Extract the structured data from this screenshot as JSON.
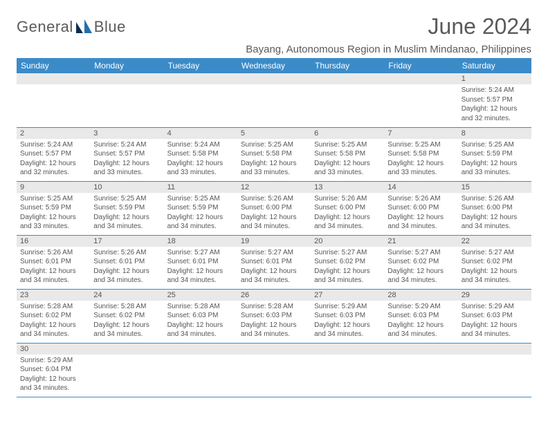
{
  "brand": {
    "name_part1": "General",
    "name_part2": "Blue"
  },
  "title": "June 2024",
  "location": "Bayang, Autonomous Region in Muslim Mindanao, Philippines",
  "colors": {
    "header_bg": "#3b8bc9",
    "header_text": "#ffffff",
    "daynum_bg": "#e9e9e9",
    "text": "#555555",
    "divider": "#3b8bc9",
    "logo_accent": "#1f6fb0"
  },
  "day_headers": [
    "Sunday",
    "Monday",
    "Tuesday",
    "Wednesday",
    "Thursday",
    "Friday",
    "Saturday"
  ],
  "label_prefixes": {
    "sunrise": "Sunrise: ",
    "sunset": "Sunset: ",
    "daylight": "Daylight: "
  },
  "weeks": [
    [
      {
        "n": "",
        "sunrise": "",
        "sunset": "",
        "daylight": ""
      },
      {
        "n": "",
        "sunrise": "",
        "sunset": "",
        "daylight": ""
      },
      {
        "n": "",
        "sunrise": "",
        "sunset": "",
        "daylight": ""
      },
      {
        "n": "",
        "sunrise": "",
        "sunset": "",
        "daylight": ""
      },
      {
        "n": "",
        "sunrise": "",
        "sunset": "",
        "daylight": ""
      },
      {
        "n": "",
        "sunrise": "",
        "sunset": "",
        "daylight": ""
      },
      {
        "n": "1",
        "sunrise": "5:24 AM",
        "sunset": "5:57 PM",
        "daylight": "12 hours and 32 minutes."
      }
    ],
    [
      {
        "n": "2",
        "sunrise": "5:24 AM",
        "sunset": "5:57 PM",
        "daylight": "12 hours and 32 minutes."
      },
      {
        "n": "3",
        "sunrise": "5:24 AM",
        "sunset": "5:57 PM",
        "daylight": "12 hours and 33 minutes."
      },
      {
        "n": "4",
        "sunrise": "5:24 AM",
        "sunset": "5:58 PM",
        "daylight": "12 hours and 33 minutes."
      },
      {
        "n": "5",
        "sunrise": "5:25 AM",
        "sunset": "5:58 PM",
        "daylight": "12 hours and 33 minutes."
      },
      {
        "n": "6",
        "sunrise": "5:25 AM",
        "sunset": "5:58 PM",
        "daylight": "12 hours and 33 minutes."
      },
      {
        "n": "7",
        "sunrise": "5:25 AM",
        "sunset": "5:58 PM",
        "daylight": "12 hours and 33 minutes."
      },
      {
        "n": "8",
        "sunrise": "5:25 AM",
        "sunset": "5:59 PM",
        "daylight": "12 hours and 33 minutes."
      }
    ],
    [
      {
        "n": "9",
        "sunrise": "5:25 AM",
        "sunset": "5:59 PM",
        "daylight": "12 hours and 33 minutes."
      },
      {
        "n": "10",
        "sunrise": "5:25 AM",
        "sunset": "5:59 PM",
        "daylight": "12 hours and 34 minutes."
      },
      {
        "n": "11",
        "sunrise": "5:25 AM",
        "sunset": "5:59 PM",
        "daylight": "12 hours and 34 minutes."
      },
      {
        "n": "12",
        "sunrise": "5:26 AM",
        "sunset": "6:00 PM",
        "daylight": "12 hours and 34 minutes."
      },
      {
        "n": "13",
        "sunrise": "5:26 AM",
        "sunset": "6:00 PM",
        "daylight": "12 hours and 34 minutes."
      },
      {
        "n": "14",
        "sunrise": "5:26 AM",
        "sunset": "6:00 PM",
        "daylight": "12 hours and 34 minutes."
      },
      {
        "n": "15",
        "sunrise": "5:26 AM",
        "sunset": "6:00 PM",
        "daylight": "12 hours and 34 minutes."
      }
    ],
    [
      {
        "n": "16",
        "sunrise": "5:26 AM",
        "sunset": "6:01 PM",
        "daylight": "12 hours and 34 minutes."
      },
      {
        "n": "17",
        "sunrise": "5:26 AM",
        "sunset": "6:01 PM",
        "daylight": "12 hours and 34 minutes."
      },
      {
        "n": "18",
        "sunrise": "5:27 AM",
        "sunset": "6:01 PM",
        "daylight": "12 hours and 34 minutes."
      },
      {
        "n": "19",
        "sunrise": "5:27 AM",
        "sunset": "6:01 PM",
        "daylight": "12 hours and 34 minutes."
      },
      {
        "n": "20",
        "sunrise": "5:27 AM",
        "sunset": "6:02 PM",
        "daylight": "12 hours and 34 minutes."
      },
      {
        "n": "21",
        "sunrise": "5:27 AM",
        "sunset": "6:02 PM",
        "daylight": "12 hours and 34 minutes."
      },
      {
        "n": "22",
        "sunrise": "5:27 AM",
        "sunset": "6:02 PM",
        "daylight": "12 hours and 34 minutes."
      }
    ],
    [
      {
        "n": "23",
        "sunrise": "5:28 AM",
        "sunset": "6:02 PM",
        "daylight": "12 hours and 34 minutes."
      },
      {
        "n": "24",
        "sunrise": "5:28 AM",
        "sunset": "6:02 PM",
        "daylight": "12 hours and 34 minutes."
      },
      {
        "n": "25",
        "sunrise": "5:28 AM",
        "sunset": "6:03 PM",
        "daylight": "12 hours and 34 minutes."
      },
      {
        "n": "26",
        "sunrise": "5:28 AM",
        "sunset": "6:03 PM",
        "daylight": "12 hours and 34 minutes."
      },
      {
        "n": "27",
        "sunrise": "5:29 AM",
        "sunset": "6:03 PM",
        "daylight": "12 hours and 34 minutes."
      },
      {
        "n": "28",
        "sunrise": "5:29 AM",
        "sunset": "6:03 PM",
        "daylight": "12 hours and 34 minutes."
      },
      {
        "n": "29",
        "sunrise": "5:29 AM",
        "sunset": "6:03 PM",
        "daylight": "12 hours and 34 minutes."
      }
    ],
    [
      {
        "n": "30",
        "sunrise": "5:29 AM",
        "sunset": "6:04 PM",
        "daylight": "12 hours and 34 minutes."
      },
      {
        "n": "",
        "sunrise": "",
        "sunset": "",
        "daylight": ""
      },
      {
        "n": "",
        "sunrise": "",
        "sunset": "",
        "daylight": ""
      },
      {
        "n": "",
        "sunrise": "",
        "sunset": "",
        "daylight": ""
      },
      {
        "n": "",
        "sunrise": "",
        "sunset": "",
        "daylight": ""
      },
      {
        "n": "",
        "sunrise": "",
        "sunset": "",
        "daylight": ""
      },
      {
        "n": "",
        "sunrise": "",
        "sunset": "",
        "daylight": ""
      }
    ]
  ]
}
